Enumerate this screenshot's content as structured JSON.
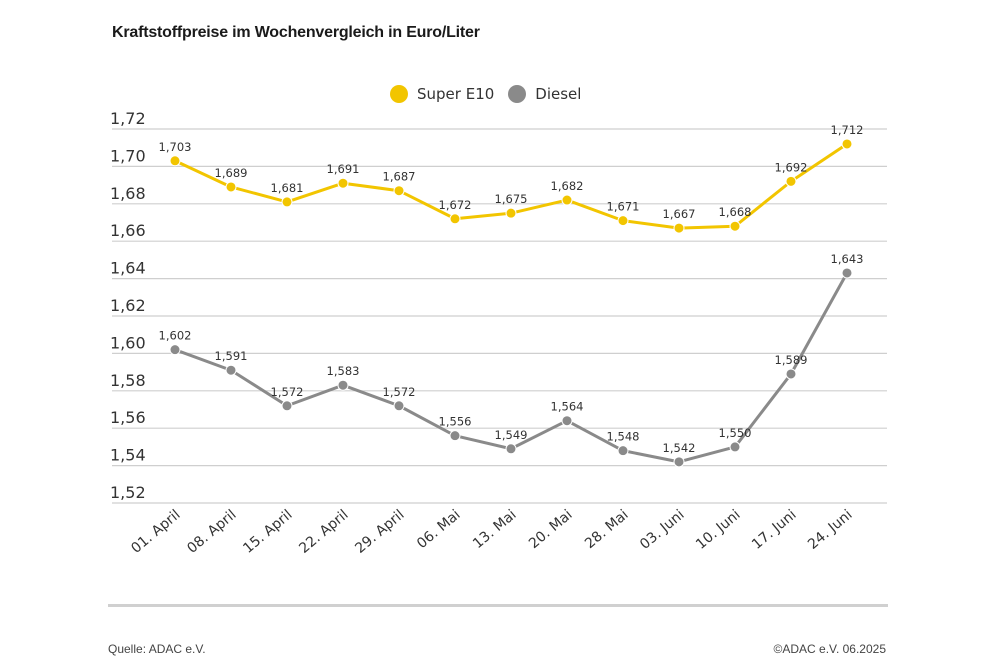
{
  "chart_data": {
    "type": "line",
    "title": "Kraftstoffpreise im Wochenvergleich in Euro/Liter",
    "xlabel": "",
    "ylabel": "",
    "ylim": [
      1.52,
      1.72
    ],
    "yticks": [
      1.72,
      1.7,
      1.68,
      1.66,
      1.64,
      1.62,
      1.6,
      1.58,
      1.56,
      1.54,
      1.52
    ],
    "ytick_labels": [
      "1,72",
      "1,70",
      "1,68",
      "1,66",
      "1,64",
      "1,62",
      "1,60",
      "1,58",
      "1,56",
      "1,54",
      "1,52"
    ],
    "grid": true,
    "legend_position": "top-center",
    "categories": [
      "01. April",
      "08. April",
      "15. April",
      "22. April",
      "29. April",
      "06. Mai",
      "13. Mai",
      "20. Mai",
      "28. Mai",
      "03. Juni",
      "10. Juni",
      "17. Juni",
      "24. Juni"
    ],
    "series": [
      {
        "name": "Super E10",
        "color": "#f2c500",
        "values": [
          1.703,
          1.689,
          1.681,
          1.691,
          1.687,
          1.672,
          1.675,
          1.682,
          1.671,
          1.667,
          1.668,
          1.692,
          1.712
        ],
        "labels": [
          "1,703",
          "1,689",
          "1,681",
          "1,691",
          "1,687",
          "1,672",
          "1,675",
          "1,682",
          "1,671",
          "1,667",
          "1,668",
          "1,692",
          "1,712"
        ]
      },
      {
        "name": "Diesel",
        "color": "#8a8a8a",
        "values": [
          1.602,
          1.591,
          1.572,
          1.583,
          1.572,
          1.556,
          1.549,
          1.564,
          1.548,
          1.542,
          1.55,
          1.589,
          1.643
        ],
        "labels": [
          "1,602",
          "1,591",
          "1,572",
          "1,583",
          "1,572",
          "1,556",
          "1,549",
          "1,564",
          "1,548",
          "1,542",
          "1,550",
          "1,589",
          "1,643"
        ]
      }
    ]
  },
  "footer": {
    "source": "Quelle: ADAC e.V.",
    "copyright": "©ADAC e.V. 06.2025"
  }
}
